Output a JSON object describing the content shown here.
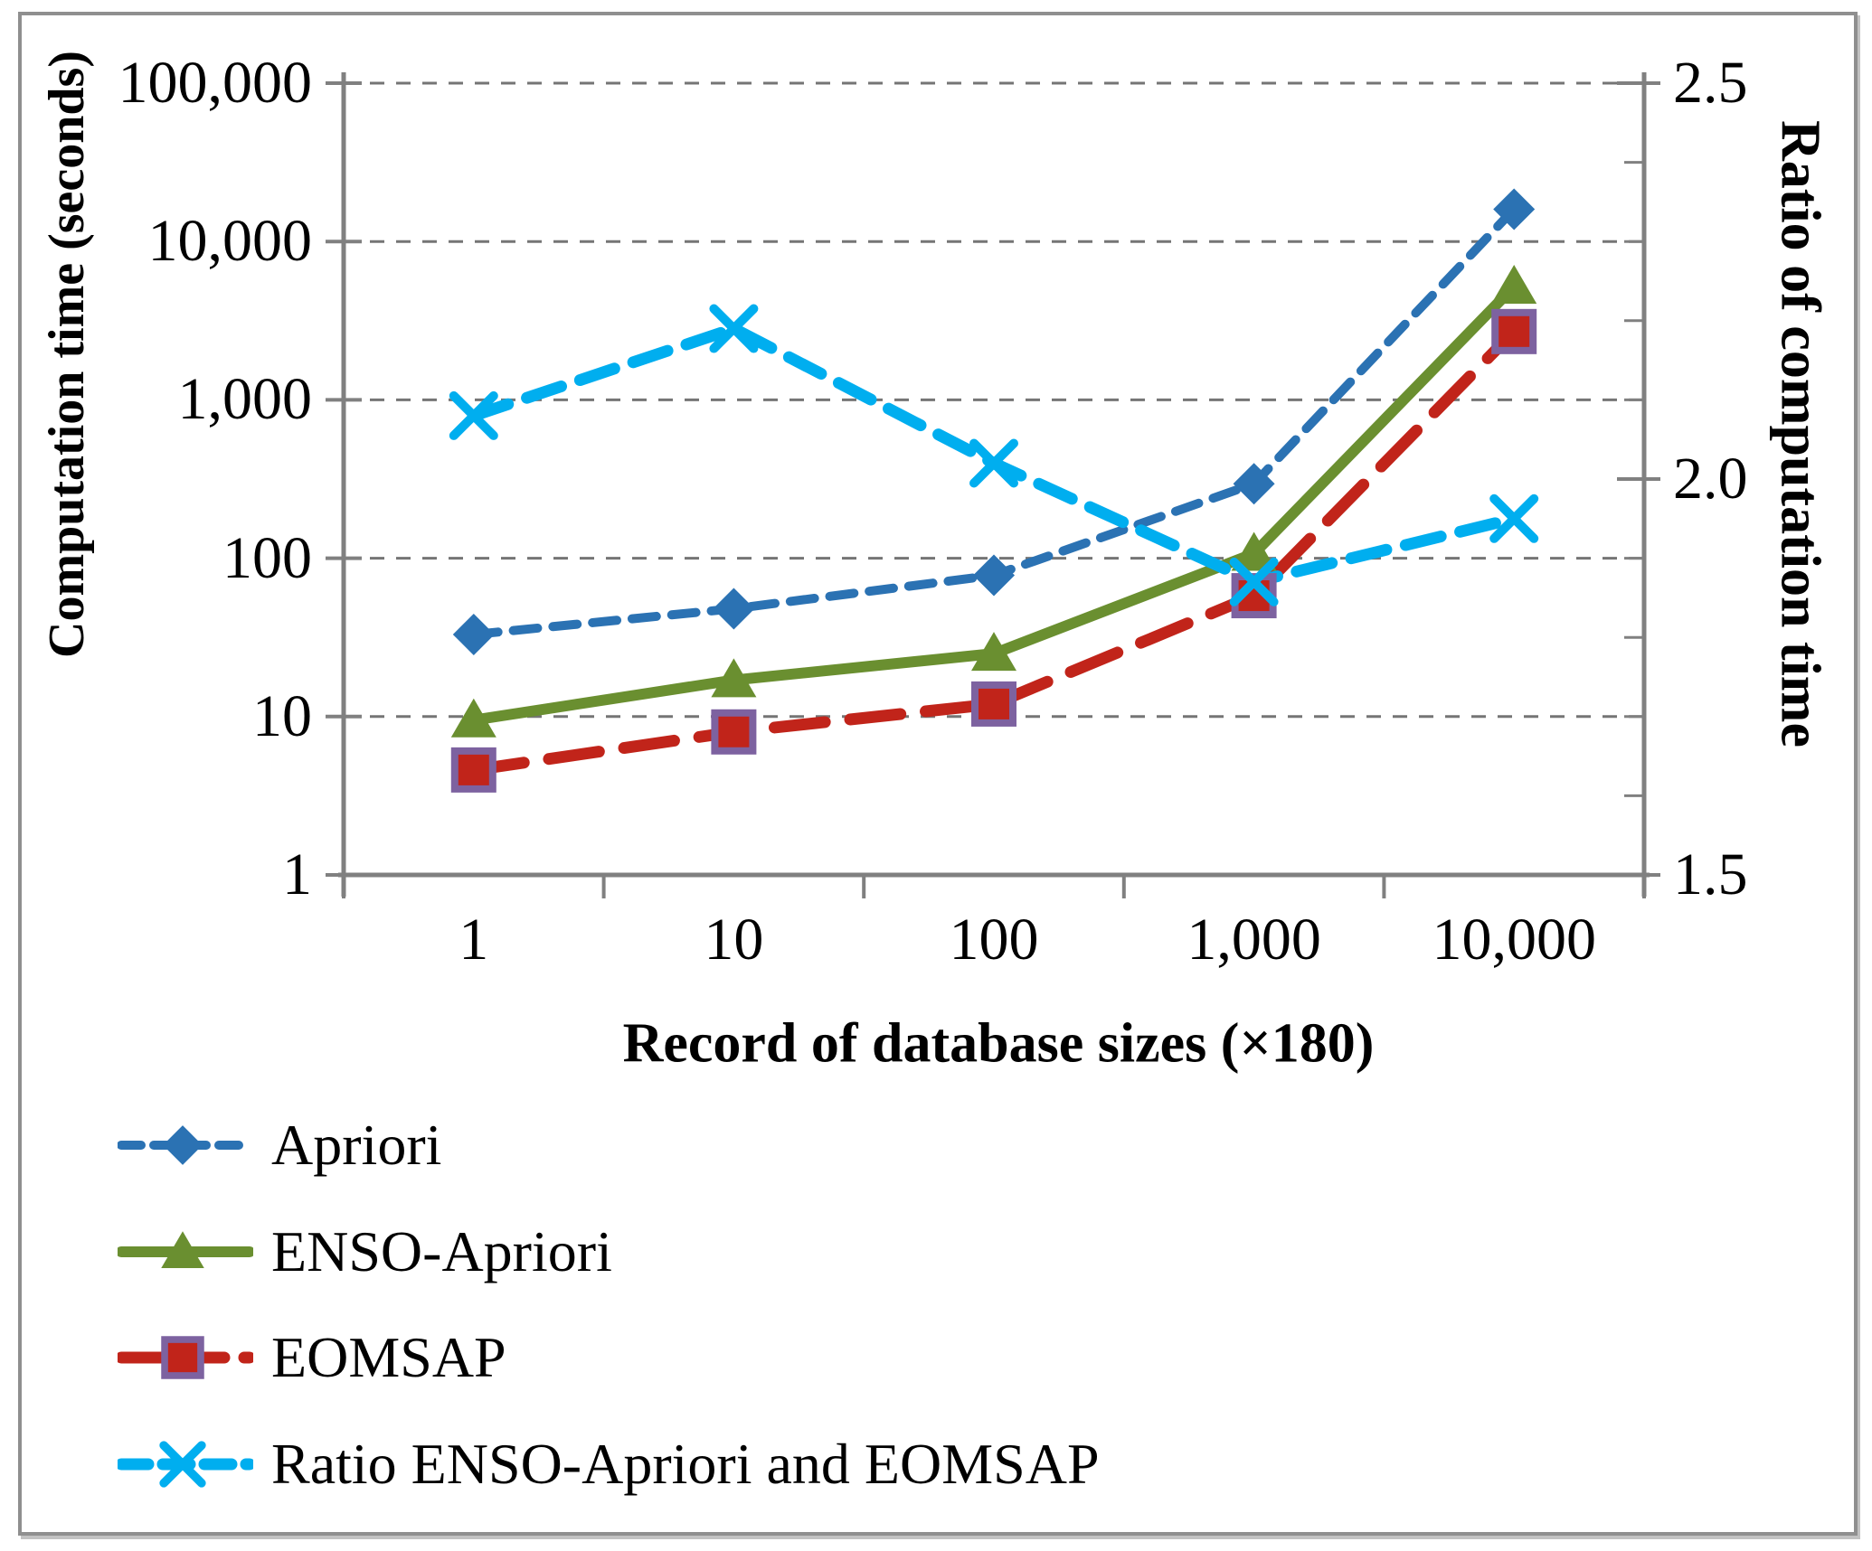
{
  "chart_data": {
    "type": "line",
    "x_axis": {
      "title": "Record of database sizes (×180)",
      "tick_labels": [
        "1",
        "10",
        "100",
        "1,000",
        "10,000"
      ],
      "values": [
        1,
        10,
        100,
        1000,
        10000
      ],
      "scale": "log-category"
    },
    "left_y_axis": {
      "title": "Computation time (seconds)",
      "scale": "log",
      "min": 1,
      "max": 100000,
      "tick_labels": [
        "1",
        "10",
        "100",
        "1,000",
        "10,000",
        "100,000"
      ]
    },
    "right_y_axis": {
      "title": "Ratio of computation time",
      "scale": "linear",
      "min": 1.5,
      "max": 2.5,
      "tick_labels": [
        "2.5",
        "2.0",
        "1.5"
      ],
      "minor_tick_step": 0.1
    },
    "grid": "horizontal-dashed",
    "grid_color": "#757575",
    "axis_color": "#808080",
    "legend_position": "bottom-left",
    "series": [
      {
        "id": "apriori",
        "name": "Apriori",
        "axis": "left",
        "color": "#2B72B3",
        "line_style": "dashed",
        "marker": "diamond",
        "values": [
          33,
          48,
          78,
          295,
          16000
        ]
      },
      {
        "id": "enso",
        "name": "ENSO-Apriori",
        "axis": "left",
        "color": "#6A8F30",
        "line_style": "solid",
        "marker": "triangle",
        "values": [
          9.5,
          17,
          25,
          107,
          5200
        ]
      },
      {
        "id": "eomsap",
        "name": "EOMSAP",
        "axis": "left",
        "color": "#C1241A",
        "marker_border": "#7D62A0",
        "line_style": "long-dash",
        "marker": "square",
        "values": [
          4.6,
          8,
          12,
          58,
          2700
        ]
      },
      {
        "id": "ratio",
        "name": "Ratio ENSO-Apriori and EOMSAP",
        "axis": "right",
        "color": "#00AEEF",
        "line_style": "dash",
        "marker": "x",
        "values": [
          2.08,
          2.19,
          2.02,
          1.87,
          1.95
        ]
      }
    ]
  }
}
